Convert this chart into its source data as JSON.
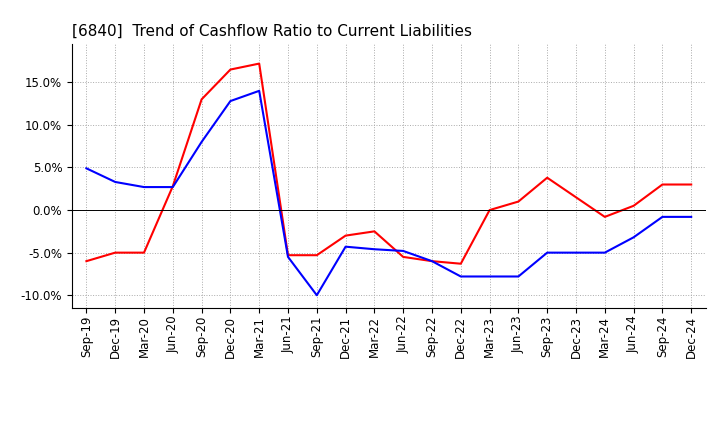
{
  "title": "[6840]  Trend of Cashflow Ratio to Current Liabilities",
  "x_labels": [
    "Sep-19",
    "Dec-19",
    "Mar-20",
    "Jun-20",
    "Sep-20",
    "Dec-20",
    "Mar-21",
    "Jun-21",
    "Sep-21",
    "Dec-21",
    "Mar-22",
    "Jun-22",
    "Sep-22",
    "Dec-22",
    "Mar-23",
    "Jun-23",
    "Sep-23",
    "Dec-23",
    "Mar-24",
    "Jun-24",
    "Sep-24",
    "Dec-24"
  ],
  "operating_cf": [
    -0.06,
    -0.05,
    -0.05,
    0.028,
    0.13,
    0.165,
    0.172,
    -0.053,
    -0.053,
    -0.03,
    -0.025,
    -0.055,
    -0.06,
    -0.063,
    0.0,
    0.01,
    0.038,
    0.015,
    -0.008,
    0.005,
    0.03,
    0.03
  ],
  "free_cf": [
    0.049,
    0.033,
    0.027,
    0.027,
    0.08,
    0.128,
    0.14,
    -0.055,
    -0.1,
    -0.043,
    -0.046,
    -0.048,
    -0.06,
    -0.078,
    -0.078,
    -0.078,
    -0.05,
    -0.05,
    -0.05,
    -0.032,
    -0.008,
    -0.008
  ],
  "ylim": [
    -0.115,
    0.195
  ],
  "yticks": [
    -0.1,
    -0.05,
    0.0,
    0.05,
    0.1,
    0.15
  ],
  "operating_color": "#ff0000",
  "free_color": "#0000ff",
  "background_color": "#ffffff",
  "grid_color": "#aaaaaa",
  "title_fontsize": 11,
  "tick_fontsize": 8.5,
  "legend_fontsize": 9.5
}
